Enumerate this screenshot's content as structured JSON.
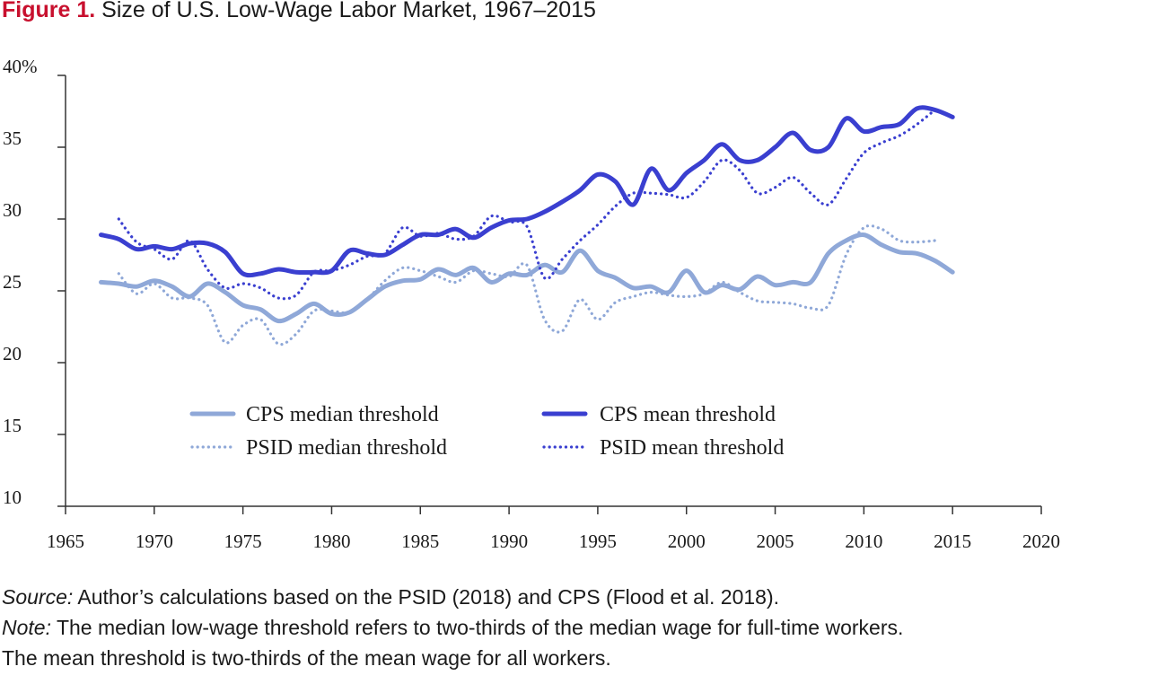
{
  "figure": {
    "label": "Figure 1.",
    "title": "Size of U.S. Low-Wage Labor Market, 1967–2015"
  },
  "footer": {
    "source_label": "Source:",
    "source_text": " Author’s calculations based on the PSID (2018) and CPS (Flood et al. 2018).",
    "note_label": "Note:",
    "note_text": " The median low-wage threshold refers to two-thirds of the median wage for full-time workers.",
    "note_text_2": "The mean threshold is two-thirds of the mean wage for all workers."
  },
  "colors": {
    "median": "#8fa8d8",
    "mean": "#3a3fd0",
    "axis": "#333333",
    "brand": "#c8102e"
  },
  "chart_data": {
    "type": "line",
    "xlim": [
      1965,
      2020
    ],
    "ylim": [
      10,
      40
    ],
    "x_ticks": [
      1965,
      1970,
      1975,
      1980,
      1985,
      1990,
      1995,
      2000,
      2005,
      2010,
      2015,
      2020
    ],
    "y_ticks": [
      10,
      15,
      20,
      25,
      30,
      35,
      40
    ],
    "y_tick_labels": [
      "10",
      "15",
      "20",
      "25",
      "30",
      "35",
      "40%"
    ],
    "legend_position": "lower-center, inside plot",
    "grid": false,
    "series": [
      {
        "name": "CPS median threshold",
        "style": "solid-thick",
        "color_key": "median",
        "x": [
          1967,
          1968,
          1969,
          1970,
          1971,
          1972,
          1973,
          1974,
          1975,
          1976,
          1977,
          1978,
          1979,
          1980,
          1981,
          1982,
          1983,
          1984,
          1985,
          1986,
          1987,
          1988,
          1989,
          1990,
          1991,
          1992,
          1993,
          1994,
          1995,
          1996,
          1997,
          1998,
          1999,
          2000,
          2001,
          2002,
          2003,
          2004,
          2005,
          2006,
          2007,
          2008,
          2009,
          2010,
          2011,
          2012,
          2013,
          2014,
          2015
        ],
        "y": [
          25.6,
          25.5,
          25.3,
          25.7,
          25.3,
          24.6,
          25.5,
          24.9,
          24.0,
          23.7,
          22.9,
          23.4,
          24.1,
          23.4,
          23.5,
          24.4,
          25.3,
          25.7,
          25.8,
          26.5,
          26.1,
          26.6,
          25.6,
          26.2,
          26.1,
          26.8,
          26.3,
          27.8,
          26.4,
          25.9,
          25.2,
          25.3,
          24.9,
          26.4,
          24.9,
          25.4,
          25.1,
          26.0,
          25.4,
          25.6,
          25.6,
          27.6,
          28.5,
          28.9,
          28.2,
          27.7,
          27.6,
          27.1,
          26.3
        ]
      },
      {
        "name": "CPS mean threshold",
        "style": "solid-thick",
        "color_key": "mean",
        "x": [
          1967,
          1968,
          1969,
          1970,
          1971,
          1972,
          1973,
          1974,
          1975,
          1976,
          1977,
          1978,
          1979,
          1980,
          1981,
          1982,
          1983,
          1984,
          1985,
          1986,
          1987,
          1988,
          1989,
          1990,
          1991,
          1992,
          1993,
          1994,
          1995,
          1996,
          1997,
          1998,
          1999,
          2000,
          2001,
          2002,
          2003,
          2004,
          2005,
          2006,
          2007,
          2008,
          2009,
          2010,
          2011,
          2012,
          2013,
          2014,
          2015
        ],
        "y": [
          28.9,
          28.6,
          27.9,
          28.1,
          27.9,
          28.3,
          28.3,
          27.7,
          26.2,
          26.2,
          26.5,
          26.3,
          26.3,
          26.4,
          27.8,
          27.6,
          27.5,
          28.2,
          28.9,
          28.9,
          29.3,
          28.7,
          29.4,
          29.9,
          30.0,
          30.5,
          31.2,
          32.0,
          33.1,
          32.6,
          31.0,
          33.5,
          32.0,
          33.2,
          34.1,
          35.2,
          34.1,
          34.1,
          35.0,
          36.0,
          34.8,
          35.0,
          37.0,
          36.1,
          36.4,
          36.6,
          37.7,
          37.6,
          37.1
        ]
      },
      {
        "name": "PSID median threshold",
        "style": "dotted",
        "color_key": "median",
        "x": [
          1968,
          1969,
          1970,
          1971,
          1972,
          1973,
          1974,
          1975,
          1976,
          1977,
          1978,
          1979,
          1980,
          1981,
          1982,
          1983,
          1984,
          1985,
          1986,
          1987,
          1988,
          1989,
          1990,
          1991,
          1992,
          1993,
          1994,
          1995,
          1996,
          1997,
          1998,
          1999,
          2000,
          2001,
          2002,
          2003,
          2004,
          2005,
          2006,
          2007,
          2008,
          2009,
          2010,
          2011,
          2012,
          2013,
          2014
        ],
        "y": [
          26.2,
          24.8,
          25.5,
          24.5,
          24.5,
          24.0,
          21.4,
          22.6,
          23.0,
          21.3,
          22.0,
          23.6,
          23.6,
          23.5,
          24.4,
          25.7,
          26.6,
          26.4,
          26.0,
          25.6,
          26.4,
          26.2,
          26.0,
          26.8,
          23.0,
          22.2,
          24.4,
          23.0,
          24.2,
          24.6,
          24.9,
          24.7,
          24.6,
          24.8,
          25.6,
          24.9,
          24.3,
          24.2,
          24.1,
          23.8,
          24.0,
          27.5,
          29.4,
          29.3,
          28.5,
          28.4,
          28.5
        ]
      },
      {
        "name": "PSID mean threshold",
        "style": "dotted",
        "color_key": "mean",
        "x": [
          1968,
          1969,
          1970,
          1971,
          1972,
          1973,
          1974,
          1975,
          1976,
          1977,
          1978,
          1979,
          1980,
          1981,
          1982,
          1983,
          1984,
          1985,
          1986,
          1987,
          1988,
          1989,
          1990,
          1991,
          1992,
          1993,
          1994,
          1995,
          1996,
          1997,
          1998,
          1999,
          2000,
          2001,
          2002,
          2003,
          2004,
          2005,
          2006,
          2007,
          2008,
          2009,
          2010,
          2011,
          2012,
          2013,
          2014
        ],
        "y": [
          30.0,
          28.4,
          27.9,
          27.2,
          28.5,
          26.5,
          25.2,
          25.5,
          25.2,
          24.5,
          24.7,
          26.3,
          26.4,
          26.8,
          27.4,
          27.6,
          29.4,
          28.8,
          29.0,
          28.6,
          28.8,
          30.2,
          29.8,
          29.5,
          25.9,
          27.2,
          28.5,
          29.6,
          30.9,
          31.8,
          31.8,
          31.7,
          31.5,
          32.6,
          34.1,
          33.4,
          31.8,
          32.2,
          32.9,
          31.8,
          31.0,
          32.8,
          34.6,
          35.3,
          35.8,
          36.6,
          37.6
        ]
      }
    ]
  }
}
